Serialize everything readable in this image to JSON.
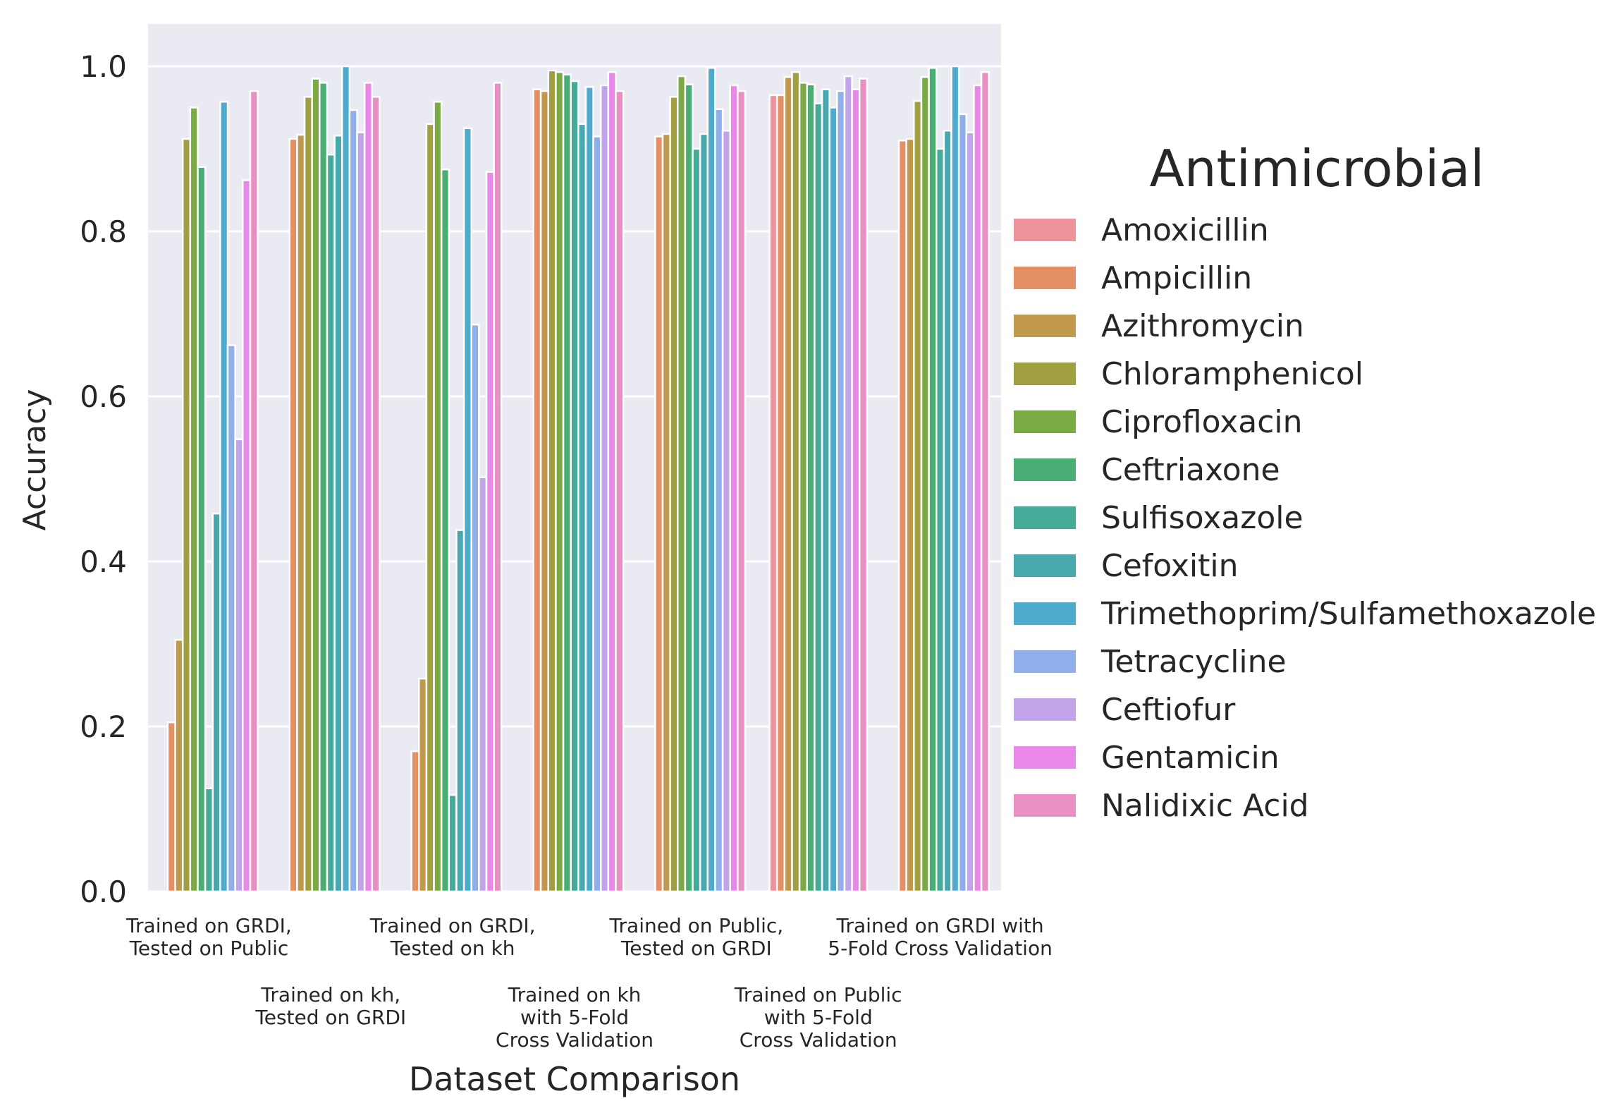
{
  "chart_data": {
    "type": "bar",
    "title": "",
    "xlabel": "Dataset Comparison",
    "ylabel": "Accuracy",
    "ylim": [
      0,
      1.05
    ],
    "yticks": [
      "0.0",
      "0.2",
      "0.4",
      "0.6",
      "0.8",
      "1.0"
    ],
    "grid": true,
    "legend_title": "Antimicrobial",
    "legend_position": "right",
    "categories": [
      [
        "Trained on GRDI,",
        "Tested on Public"
      ],
      [
        "Trained on kh,",
        "Tested on GRDI"
      ],
      [
        "Trained on GRDI,",
        "Tested on kh"
      ],
      [
        "Trained on kh",
        "with 5-Fold",
        "Cross Validation"
      ],
      [
        "Trained on Public,",
        "Tested on GRDI"
      ],
      [
        "Trained on Public",
        "with 5-Fold",
        "Cross Validation"
      ],
      [
        "Trained on GRDI with",
        "5-Fold Cross Validation"
      ]
    ],
    "series": [
      {
        "name": "Amoxicillin",
        "color": "#ec939c",
        "values": [
          0.0,
          0.0,
          0.0,
          0.0,
          0.0,
          0.965,
          0.0
        ]
      },
      {
        "name": "Ampicillin",
        "color": "#e58f64",
        "values": [
          0.205,
          0.912,
          0.17,
          0.972,
          0.915,
          0.965,
          0.91
        ]
      },
      {
        "name": "Azithromycin",
        "color": "#c1994d",
        "values": [
          0.305,
          0.917,
          0.258,
          0.97,
          0.918,
          0.987,
          0.912
        ]
      },
      {
        "name": "Chloramphenicol",
        "color": "#a0a043",
        "values": [
          0.912,
          0.963,
          0.93,
          0.995,
          0.963,
          0.993,
          0.958
        ]
      },
      {
        "name": "Ciprofloxacin",
        "color": "#7aaa44",
        "values": [
          0.95,
          0.985,
          0.957,
          0.993,
          0.988,
          0.98,
          0.987
        ]
      },
      {
        "name": "Ceftriaxone",
        "color": "#49ae73",
        "values": [
          0.878,
          0.98,
          0.875,
          0.99,
          0.978,
          0.978,
          0.998
        ]
      },
      {
        "name": "Sulfisoxazole",
        "color": "#46aa98",
        "values": [
          0.125,
          0.893,
          0.117,
          0.982,
          0.9,
          0.955,
          0.9
        ]
      },
      {
        "name": "Cefoxitin",
        "color": "#47a9ad",
        "values": [
          0.458,
          0.916,
          0.438,
          0.93,
          0.918,
          0.972,
          0.922
        ]
      },
      {
        "name": "Trimethoprim/Sulfamethoxazole",
        "color": "#4eabcc",
        "values": [
          0.957,
          1.0,
          0.925,
          0.975,
          0.998,
          0.95,
          1.0
        ]
      },
      {
        "name": "Tetracycline",
        "color": "#90aee9",
        "values": [
          0.662,
          0.947,
          0.687,
          0.915,
          0.948,
          0.97,
          0.942
        ]
      },
      {
        "name": "Ceftiofur",
        "color": "#c2a4ea",
        "values": [
          0.548,
          0.92,
          0.502,
          0.977,
          0.922,
          0.988,
          0.92
        ]
      },
      {
        "name": "Gentamicin",
        "color": "#ea88ea",
        "values": [
          0.862,
          0.98,
          0.872,
          0.993,
          0.977,
          0.972,
          0.977
        ]
      },
      {
        "name": "Nalidixic Acid",
        "color": "#e88fc3",
        "values": [
          0.97,
          0.963,
          0.98,
          0.97,
          0.97,
          0.985,
          0.993
        ]
      }
    ]
  }
}
